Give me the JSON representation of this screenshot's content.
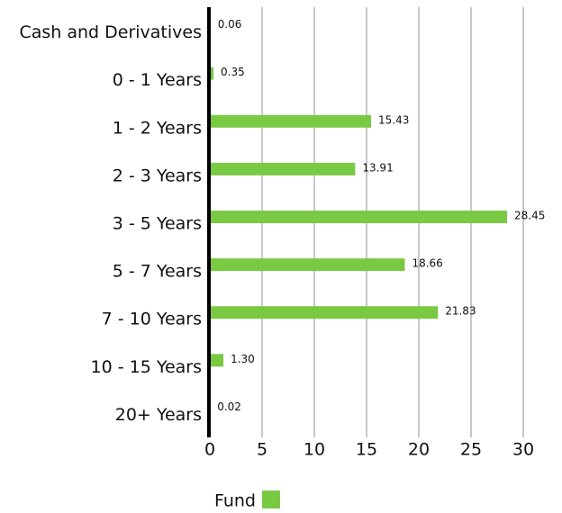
{
  "chart_data": {
    "type": "barh",
    "categories": [
      "Cash and Derivatives",
      "0 - 1 Years",
      "1 - 2 Years",
      "2 - 3 Years",
      "3 - 5 Years",
      "5 - 7 Years",
      "7 - 10 Years",
      "10 - 15 Years",
      "20+ Years"
    ],
    "series": [
      {
        "name": "Fund",
        "color": "#7ac943",
        "values": [
          0.06,
          0.35,
          15.43,
          13.91,
          28.45,
          18.66,
          21.83,
          1.3,
          0.02
        ],
        "value_labels": [
          "0.06",
          "0.35",
          "15.43",
          "13.91",
          "28.45",
          "18.66",
          "21.83",
          "1.30",
          "0.02"
        ]
      }
    ],
    "xlim": [
      0,
      30
    ],
    "xticks": [
      0,
      5,
      10,
      15,
      20,
      25,
      30
    ],
    "grid": true,
    "legend": "bottom"
  }
}
